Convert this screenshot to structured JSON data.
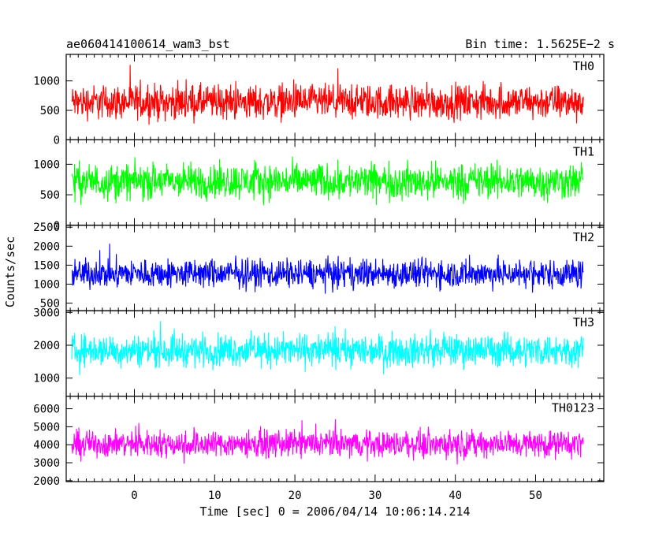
{
  "header": {
    "left_title": "ae060414100614_wam3_bst",
    "right_title": "Bin time: 1.5625E−2 s"
  },
  "chart_data": {
    "type": "line",
    "title": "ae060414100614_wam3_bst",
    "subtitle": "Bin time: 1.5625E−2 s",
    "xlabel": "Time [sec] 0 = 2006/04/14 10:06:14.214",
    "ylabel": "Counts/sec",
    "xlim": [
      -8.5,
      58.5
    ],
    "x_range_data": [
      -7.8,
      56.0
    ],
    "x_ticks": [
      0,
      10,
      20,
      30,
      40,
      50
    ],
    "grid": false,
    "panels": [
      {
        "name": "TH0",
        "color": "#ff0000",
        "ylim": [
          0,
          1450
        ],
        "y_ticks": [
          0,
          500,
          1000
        ],
        "base": 640,
        "amp": 430,
        "floor": 0,
        "peak": 1400
      },
      {
        "name": "TH1",
        "color": "#00ff00",
        "ylim": [
          0,
          1400
        ],
        "y_ticks": [
          0,
          500,
          1000
        ],
        "base": 720,
        "amp": 430,
        "floor": 0,
        "peak": 1400
      },
      {
        "name": "TH2",
        "color": "#0000ff",
        "ylim": [
          300,
          2550
        ],
        "y_ticks": [
          500,
          1000,
          1500,
          2000,
          2500
        ],
        "base": 1280,
        "amp": 560,
        "floor": 350,
        "peak": 2500
      },
      {
        "name": "TH3",
        "color": "#00ffff",
        "ylim": [
          450,
          3050
        ],
        "y_ticks": [
          1000,
          2000,
          3000
        ],
        "base": 1850,
        "amp": 720,
        "floor": 500,
        "peak": 3000
      },
      {
        "name": "TH0123",
        "color": "#ff00ff",
        "ylim": [
          1950,
          6700
        ],
        "y_ticks": [
          2000,
          3000,
          4000,
          5000,
          6000
        ],
        "base": 4050,
        "amp": 1100,
        "floor": 2000,
        "peak": 6600
      }
    ]
  }
}
